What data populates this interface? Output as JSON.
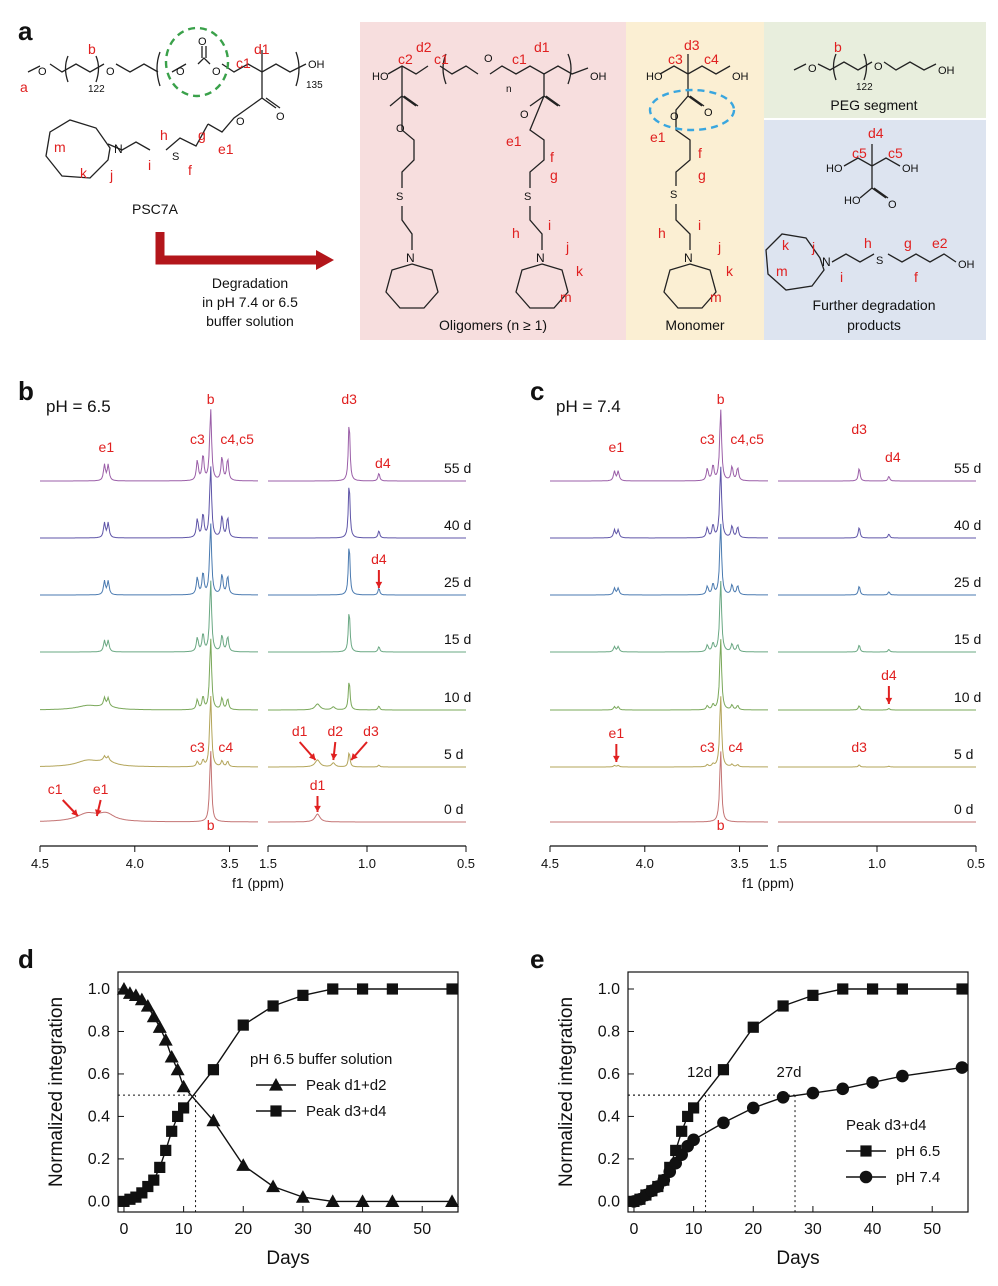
{
  "panel_labels": {
    "a": "a",
    "b": "b",
    "c": "c",
    "d": "d",
    "e": "e"
  },
  "scheme": {
    "polymer_name": "PSC7A",
    "arrow_text": [
      "Degradation",
      "in pH 7.4 or 6.5",
      "buffer solution"
    ],
    "n122": "122",
    "n135": "135",
    "n": "n",
    "oligomers_caption": "Oligomers (n ≥ 1)",
    "monomer_caption": "Monomer",
    "peg_caption": "PEG segment",
    "further_caption": [
      "Further degradation",
      "products"
    ],
    "atoms": {
      "O": "O",
      "OH": "OH",
      "HO": "HO",
      "S": "S",
      "N": "N"
    },
    "colors": {
      "pink": "#f7dede",
      "yellow": "#fbefd3",
      "green": "#e8eedd",
      "blue": "#dde4f0",
      "red": "#e02020",
      "green_dash": "#3aa14a",
      "blue_dash": "#39a6df",
      "arrow": "#b3161b"
    },
    "labels": {
      "a": "a",
      "b": "b",
      "c1": "c1",
      "c2": "c2",
      "c3": "c3",
      "c4": "c4",
      "c5": "c5",
      "d1": "d1",
      "d2": "d2",
      "d3": "d3",
      "d4": "d4",
      "e1": "e1",
      "e2": "e2",
      "f": "f",
      "g": "g",
      "h": "h",
      "i": "i",
      "j": "j",
      "k": "k",
      "m": "m"
    }
  },
  "nmr_b": {
    "title": "pH = 6.5",
    "xlabel": "f1 (ppm)",
    "ticks_left": [
      "4.5",
      "4.0",
      "3.5"
    ],
    "ticks_right": [
      "1.5",
      "1.0",
      "0.5"
    ],
    "days": [
      "55 d",
      "40 d",
      "25 d",
      "15 d",
      "10 d",
      "5 d",
      "0 d"
    ],
    "top_labels": {
      "e1": "e1",
      "c3": "c3",
      "b": "b",
      "c45": "c4,c5",
      "d3": "d3",
      "d4": "d4"
    },
    "annot": {
      "d4": "d4",
      "c3": "c3",
      "c4": "c4",
      "d1": "d1",
      "d2": "d2",
      "d3": "d3",
      "c1": "c1",
      "e1": "e1",
      "b": "b",
      "d1b": "d1"
    },
    "colors": [
      "#9b5fa8",
      "#5f55a8",
      "#4a7ab0",
      "#6aa883",
      "#7aa85a",
      "#b3a55a",
      "#c47474"
    ]
  },
  "nmr_c": {
    "title": "pH = 7.4",
    "xlabel": "f1 (ppm)",
    "ticks_left": [
      "4.5",
      "4.0",
      "3.5"
    ],
    "ticks_right": [
      "1.5",
      "1.0",
      "0.5"
    ],
    "days": [
      "55 d",
      "40 d",
      "25 d",
      "15 d",
      "10 d",
      "5 d",
      "0 d"
    ],
    "top_labels": {
      "e1": "e1",
      "c3": "c3",
      "b": "b",
      "c45": "c4,c5",
      "d3": "d3",
      "d4": "d4"
    },
    "annot": {
      "d4": "d4",
      "e1": "e1",
      "c3": "c3",
      "c4": "c4",
      "d3": "d3",
      "b": "b"
    }
  },
  "chart_data": [
    {
      "type": "line",
      "panel": "d",
      "title": "",
      "xlabel": "Days",
      "ylabel": "Normalized integration",
      "xlim": [
        -1,
        56
      ],
      "ylim": [
        -0.05,
        1.08
      ],
      "xticks": [
        "0",
        "10",
        "20",
        "30",
        "40",
        "50"
      ],
      "yticks": [
        "0.0",
        "0.2",
        "0.4",
        "0.6",
        "0.8",
        "1.0"
      ],
      "legend_title": "pH 6.5 buffer solution",
      "annotation": {
        "x": 12,
        "y": 0.5
      },
      "series": [
        {
          "name": "Peak d1+d2",
          "marker": "triangle",
          "x": [
            0,
            1,
            2,
            3,
            4,
            5,
            6,
            7,
            8,
            9,
            10,
            15,
            20,
            25,
            30,
            35,
            40,
            45,
            55
          ],
          "y": [
            1.0,
            0.98,
            0.97,
            0.95,
            0.92,
            0.87,
            0.82,
            0.76,
            0.68,
            0.62,
            0.54,
            0.38,
            0.17,
            0.07,
            0.02,
            0.0,
            0.0,
            0.0,
            0.0
          ]
        },
        {
          "name": "Peak d3+d4",
          "marker": "square",
          "x": [
            0,
            1,
            2,
            3,
            4,
            5,
            6,
            7,
            8,
            9,
            10,
            15,
            20,
            25,
            30,
            35,
            40,
            45,
            55
          ],
          "y": [
            0.0,
            0.01,
            0.02,
            0.04,
            0.07,
            0.1,
            0.16,
            0.24,
            0.33,
            0.4,
            0.44,
            0.62,
            0.83,
            0.92,
            0.97,
            1.0,
            1.0,
            1.0,
            1.0
          ]
        }
      ]
    },
    {
      "type": "line",
      "panel": "e",
      "title": "",
      "xlabel": "Days",
      "ylabel": "Normalized integration",
      "xlim": [
        -1,
        56
      ],
      "ylim": [
        -0.05,
        1.08
      ],
      "xticks": [
        "0",
        "10",
        "20",
        "30",
        "40",
        "50"
      ],
      "yticks": [
        "0.0",
        "0.2",
        "0.4",
        "0.6",
        "0.8",
        "1.0"
      ],
      "legend_title": "Peak d3+d4",
      "annotations": [
        {
          "x": 12,
          "y": 0.5,
          "text": "12d"
        },
        {
          "x": 27,
          "y": 0.5,
          "text": "27d"
        }
      ],
      "series": [
        {
          "name": "pH 6.5",
          "marker": "square",
          "x": [
            0,
            1,
            2,
            3,
            4,
            5,
            6,
            7,
            8,
            9,
            10,
            15,
            20,
            25,
            30,
            35,
            40,
            45,
            55
          ],
          "y": [
            0.0,
            0.01,
            0.03,
            0.05,
            0.07,
            0.1,
            0.16,
            0.24,
            0.33,
            0.4,
            0.44,
            0.62,
            0.82,
            0.92,
            0.97,
            1.0,
            1.0,
            1.0,
            1.0
          ]
        },
        {
          "name": "pH 7.4",
          "marker": "circle",
          "x": [
            0,
            1,
            2,
            3,
            4,
            5,
            6,
            7,
            8,
            9,
            10,
            15,
            20,
            25,
            30,
            35,
            40,
            45,
            55
          ],
          "y": [
            0.0,
            0.01,
            0.03,
            0.05,
            0.07,
            0.1,
            0.14,
            0.18,
            0.22,
            0.26,
            0.29,
            0.37,
            0.44,
            0.49,
            0.51,
            0.53,
            0.56,
            0.59,
            0.63
          ]
        }
      ]
    }
  ]
}
